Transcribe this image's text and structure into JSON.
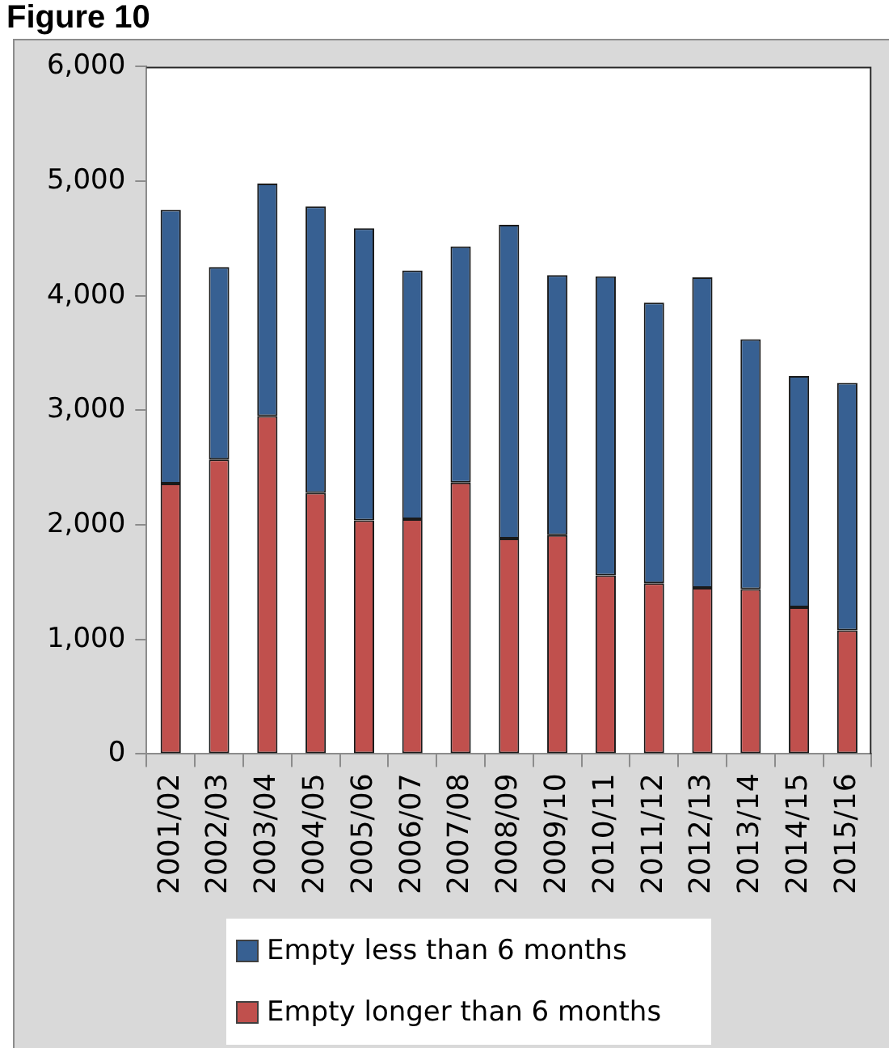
{
  "chart_data": {
    "type": "bar",
    "title": "Figure 10",
    "categories": [
      "2001/02",
      "2002/03",
      "2003/04",
      "2004/05",
      "2005/06",
      "2006/07",
      "2007/08",
      "2008/09",
      "2009/10",
      "2010/11",
      "2011/12",
      "2012/13",
      "2013/14",
      "2014/15",
      "2015/16"
    ],
    "series": [
      {
        "name": "Empty longer than 6 months",
        "color": "#c0504d",
        "values": [
          2360,
          2570,
          2950,
          2280,
          2040,
          2050,
          2370,
          1880,
          1910,
          1560,
          1490,
          1450,
          1440,
          1280,
          1080
        ]
      },
      {
        "name": "Empty less than 6 months",
        "color": "#376092",
        "values": [
          2390,
          1680,
          2030,
          2500,
          2550,
          2170,
          2060,
          2740,
          2270,
          2610,
          2450,
          2710,
          2180,
          2020,
          2160
        ]
      }
    ],
    "stacked": true,
    "ylim": [
      0,
      6000
    ],
    "yticks": [
      0,
      {
        "value": 1000,
        "label": "1,000"
      },
      {
        "value": 2000,
        "label": "2,000"
      },
      {
        "value": 3000,
        "label": "3,000"
      },
      {
        "value": 4000,
        "label": "4,000"
      },
      {
        "value": 5000,
        "label": "5,000"
      },
      {
        "value": 6000,
        "label": "6,000"
      }
    ],
    "grid": false,
    "legend": "bottom"
  }
}
